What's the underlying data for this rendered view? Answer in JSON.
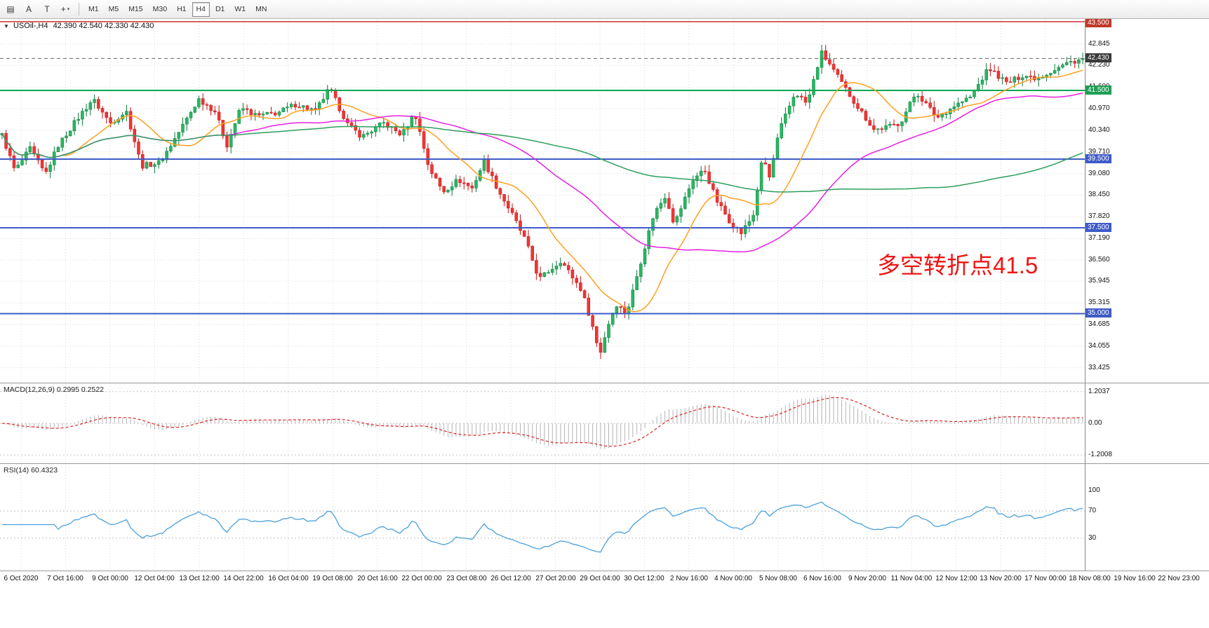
{
  "toolbar": {
    "tools": [
      {
        "name": "charts-grid",
        "glyph": "▤"
      },
      {
        "name": "text-label",
        "glyph": "A"
      },
      {
        "name": "text-frame",
        "glyph": "T"
      },
      {
        "name": "crosshair",
        "glyph": "+"
      }
    ],
    "dropdown_caret": "▾",
    "timeframes": [
      "M1",
      "M5",
      "M15",
      "M30",
      "H1",
      "H4",
      "D1",
      "W1",
      "MN"
    ],
    "active_timeframe": "H4"
  },
  "chart": {
    "collapse_arrow": "▼",
    "symbol_title": "USOil-,H4",
    "ohlc_text": "42.390 42.540 42.330 42.430",
    "annotation": {
      "text": "多空转折点41.5",
      "color": "#f01414"
    },
    "price_scale": {
      "max": 43.56,
      "min": 32.99
    },
    "price_axis_ticks": [
      42.845,
      42.23,
      41.6,
      40.97,
      40.34,
      39.71,
      39.08,
      38.45,
      37.82,
      37.19,
      36.56,
      35.945,
      35.315,
      34.685,
      34.055,
      33.425
    ],
    "badges": [
      {
        "text": "43.500",
        "price": 43.5,
        "color": "#c0392b"
      },
      {
        "text": "42.430",
        "price": 42.43,
        "color": "#3a3a3a"
      },
      {
        "text": "41.500",
        "price": 41.5,
        "color": "#1e9e55"
      },
      {
        "text": "39.500",
        "price": 39.5,
        "color": "#3f5bc8"
      },
      {
        "text": "37.500",
        "price": 37.5,
        "color": "#3f5bc8"
      },
      {
        "text": "35.000",
        "price": 35.0,
        "color": "#3f5bc8"
      }
    ],
    "levels": [
      {
        "price": 43.5,
        "color": "#cc1f1f",
        "width": 1.4,
        "style": "solid"
      },
      {
        "price": 42.43,
        "color": "#666666",
        "width": 1,
        "style": "dashed"
      },
      {
        "price": 41.5,
        "color": "#00a652",
        "width": 2,
        "style": "solid"
      },
      {
        "price": 39.5,
        "color": "#3f5bc8",
        "width": 2,
        "style": "solid"
      },
      {
        "price": 37.5,
        "color": "#3f5bc8",
        "width": 2,
        "style": "solid"
      },
      {
        "price": 35.0,
        "color": "#3f5bc8",
        "width": 2,
        "style": "solid"
      }
    ]
  },
  "series": {
    "candle_count": 270,
    "noise": 0.16,
    "wick": 0.2,
    "up_fill": "#28b862",
    "up_stroke": "#0c7a3c",
    "down_fill": "#f03535",
    "down_stroke": "#c21616",
    "moving_averages": [
      {
        "period": 16,
        "color": "#ffa020"
      },
      {
        "period": 55,
        "color": "#e520e5"
      },
      {
        "period": 130,
        "color": "#2e9e5e"
      }
    ],
    "anchors": [
      [
        0.0,
        40.2
      ],
      [
        0.012,
        39.15
      ],
      [
        0.026,
        39.8
      ],
      [
        0.04,
        39.05
      ],
      [
        0.052,
        39.9
      ],
      [
        0.068,
        40.6
      ],
      [
        0.084,
        41.25
      ],
      [
        0.1,
        40.55
      ],
      [
        0.115,
        40.9
      ],
      [
        0.129,
        39.3
      ],
      [
        0.146,
        39.4
      ],
      [
        0.16,
        40.1
      ],
      [
        0.182,
        41.25
      ],
      [
        0.197,
        40.9
      ],
      [
        0.208,
        39.9
      ],
      [
        0.221,
        41.0
      ],
      [
        0.236,
        40.75
      ],
      [
        0.255,
        40.85
      ],
      [
        0.272,
        41.1
      ],
      [
        0.29,
        40.9
      ],
      [
        0.303,
        41.55
      ],
      [
        0.32,
        40.5
      ],
      [
        0.333,
        40.15
      ],
      [
        0.353,
        40.55
      ],
      [
        0.37,
        40.2
      ],
      [
        0.382,
        40.85
      ],
      [
        0.395,
        39.25
      ],
      [
        0.408,
        38.55
      ],
      [
        0.422,
        38.9
      ],
      [
        0.435,
        38.65
      ],
      [
        0.446,
        39.45
      ],
      [
        0.459,
        38.6
      ],
      [
        0.471,
        37.95
      ],
      [
        0.484,
        37.15
      ],
      [
        0.497,
        36.0
      ],
      [
        0.51,
        36.35
      ],
      [
        0.517,
        36.55
      ],
      [
        0.527,
        36.1
      ],
      [
        0.536,
        35.7
      ],
      [
        0.545,
        34.8
      ],
      [
        0.553,
        33.8
      ],
      [
        0.56,
        34.6
      ],
      [
        0.568,
        35.3
      ],
      [
        0.578,
        35.0
      ],
      [
        0.59,
        36.4
      ],
      [
        0.603,
        37.9
      ],
      [
        0.614,
        38.45
      ],
      [
        0.622,
        37.6
      ],
      [
        0.639,
        38.9
      ],
      [
        0.65,
        39.2
      ],
      [
        0.661,
        38.3
      ],
      [
        0.673,
        37.7
      ],
      [
        0.684,
        37.35
      ],
      [
        0.695,
        37.85
      ],
      [
        0.704,
        39.6
      ],
      [
        0.71,
        38.95
      ],
      [
        0.719,
        40.3
      ],
      [
        0.734,
        41.45
      ],
      [
        0.745,
        41.1
      ],
      [
        0.758,
        42.6
      ],
      [
        0.765,
        42.3
      ],
      [
        0.776,
        41.75
      ],
      [
        0.79,
        41.1
      ],
      [
        0.807,
        40.35
      ],
      [
        0.821,
        40.45
      ],
      [
        0.831,
        40.55
      ],
      [
        0.846,
        41.45
      ],
      [
        0.865,
        40.7
      ],
      [
        0.881,
        41.05
      ],
      [
        0.896,
        41.3
      ],
      [
        0.913,
        42.15
      ],
      [
        0.93,
        41.7
      ],
      [
        0.945,
        41.95
      ],
      [
        0.958,
        41.85
      ],
      [
        0.973,
        42.1
      ],
      [
        0.986,
        42.3
      ],
      [
        1.0,
        42.43
      ]
    ]
  },
  "macd": {
    "label": "MACD(12,26,9) 0.2995 0.2522",
    "fast": 12,
    "slow": 26,
    "signal": 9,
    "bar_color": "#b4b4b4",
    "signal_color": "#e02020",
    "axis": [
      {
        "text": "1.2037",
        "value": 1.2037
      },
      {
        "text": "0.00",
        "value": 0
      },
      {
        "text": "-1.2008",
        "value": -1.2008
      }
    ]
  },
  "rsi": {
    "label": "RSI(14) 60.4323",
    "period": 14,
    "line_color": "#4aa0dc",
    "axis": [
      {
        "text": "100",
        "value": 100
      },
      {
        "text": "70",
        "value": 70
      },
      {
        "text": "30",
        "value": 30
      }
    ],
    "level_lines": [
      70,
      30
    ]
  },
  "time_axis": [
    "6 Oct 2020",
    "7 Oct 16:00",
    "9 Oct 00:00",
    "12 Oct 04:00",
    "13 Oct 12:00",
    "14 Oct 22:00",
    "16 Oct 04:00",
    "19 Oct 08:00",
    "20 Oct 16:00",
    "22 Oct 00:00",
    "23 Oct 08:00",
    "26 Oct 12:00",
    "27 Oct 20:00",
    "29 Oct 04:00",
    "30 Oct 12:00",
    "2 Nov 16:00",
    "4 Nov 00:00",
    "5 Nov 08:00",
    "6 Nov 16:00",
    "9 Nov 20:00",
    "11 Nov 04:00",
    "12 Nov 12:00",
    "13 Nov 20:00",
    "17 Nov 00:00",
    "18 Nov 08:00",
    "19 Nov 16:00",
    "22 Nov 23:00"
  ],
  "grid_color": "#dadada"
}
